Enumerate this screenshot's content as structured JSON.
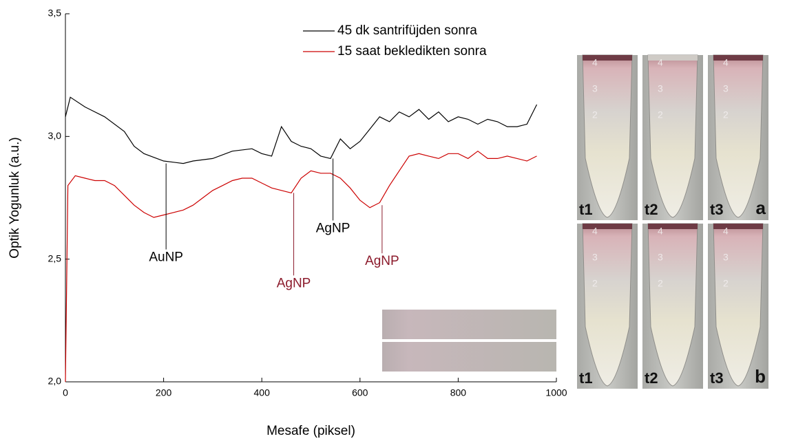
{
  "chart_data": {
    "type": "line",
    "xlabel": "Mesafe (piksel)",
    "ylabel": "Optik Yogunluk (a.u.)",
    "xlim": [
      0,
      1000
    ],
    "xticks": [
      0,
      200,
      400,
      600,
      800,
      1000
    ],
    "ylim": [
      2.0,
      3.5
    ],
    "yticks": [
      {
        "value": 2.0,
        "label": "2,0"
      },
      {
        "value": 2.5,
        "label": "2,5"
      },
      {
        "value": 3.0,
        "label": "3,0"
      },
      {
        "value": 3.5,
        "label": "3,5"
      }
    ],
    "series": [
      {
        "name": "45 dk santrifüjden sonra",
        "color": "#000000",
        "x": [
          0,
          10,
          40,
          80,
          120,
          140,
          160,
          200,
          240,
          260,
          300,
          340,
          380,
          400,
          420,
          440,
          460,
          480,
          500,
          520,
          540,
          560,
          580,
          600,
          620,
          640,
          660,
          680,
          700,
          720,
          740,
          760,
          780,
          800,
          820,
          840,
          860,
          880,
          900,
          920,
          940,
          960
        ],
        "values": [
          3.08,
          3.16,
          3.12,
          3.08,
          3.02,
          2.96,
          2.93,
          2.9,
          2.89,
          2.9,
          2.91,
          2.94,
          2.95,
          2.93,
          2.92,
          3.04,
          2.98,
          2.96,
          2.95,
          2.92,
          2.91,
          2.99,
          2.95,
          2.98,
          3.03,
          3.08,
          3.06,
          3.1,
          3.08,
          3.11,
          3.07,
          3.1,
          3.06,
          3.08,
          3.07,
          3.05,
          3.07,
          3.06,
          3.04,
          3.04,
          3.05,
          3.13
        ]
      },
      {
        "name": "15 saat bekledikten sonra",
        "color": "#cc0000",
        "x": [
          0,
          5,
          20,
          40,
          60,
          80,
          100,
          120,
          140,
          160,
          180,
          200,
          220,
          240,
          260,
          280,
          300,
          320,
          340,
          360,
          380,
          400,
          420,
          440,
          460,
          480,
          500,
          520,
          540,
          560,
          580,
          600,
          620,
          640,
          660,
          680,
          700,
          720,
          740,
          760,
          780,
          800,
          820,
          840,
          860,
          880,
          900,
          920,
          940,
          960
        ],
        "values": [
          2.0,
          2.8,
          2.84,
          2.83,
          2.82,
          2.82,
          2.8,
          2.76,
          2.72,
          2.69,
          2.67,
          2.68,
          2.69,
          2.7,
          2.72,
          2.75,
          2.78,
          2.8,
          2.82,
          2.83,
          2.83,
          2.81,
          2.79,
          2.78,
          2.77,
          2.83,
          2.86,
          2.85,
          2.85,
          2.83,
          2.79,
          2.74,
          2.71,
          2.73,
          2.8,
          2.86,
          2.92,
          2.93,
          2.92,
          2.91,
          2.93,
          2.93,
          2.91,
          2.94,
          2.91,
          2.91,
          2.92,
          2.91,
          2.9,
          2.92
        ]
      }
    ],
    "annotations": [
      {
        "text": "AuNP",
        "x": 205,
        "y": 2.89,
        "color": "#000000"
      },
      {
        "text": "AgNP",
        "x": 545,
        "y": 2.91,
        "color": "#000000"
      },
      {
        "text": "AgNP",
        "x": 465,
        "y": 2.77,
        "color": "#8b1a2b"
      },
      {
        "text": "AgNP",
        "x": 645,
        "y": 2.72,
        "color": "#8b1a2b"
      }
    ]
  },
  "photos": {
    "tubes": [
      "t1",
      "t2",
      "t3"
    ],
    "panels": [
      "a",
      "b"
    ],
    "scale_marks": [
      "4",
      "3",
      "2"
    ]
  }
}
